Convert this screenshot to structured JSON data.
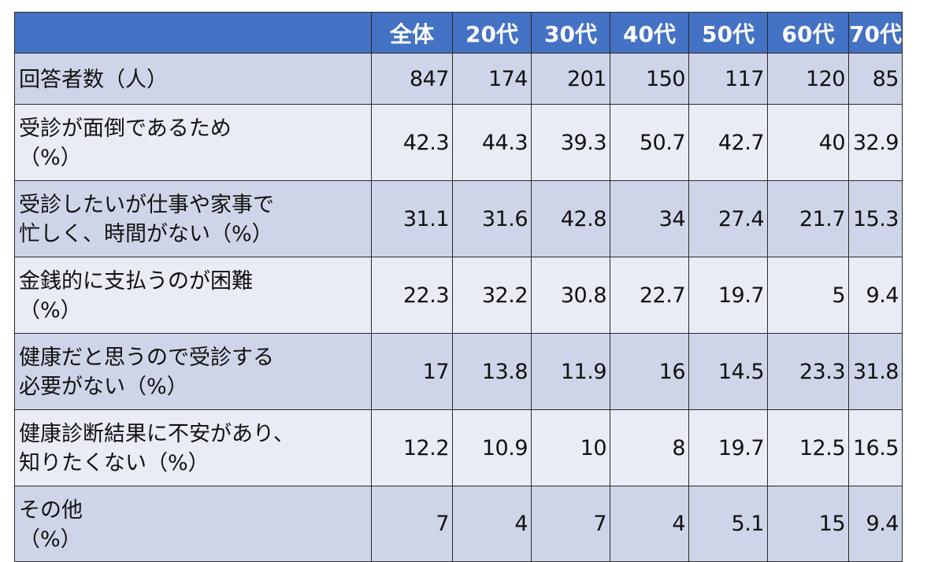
{
  "chart_data": {
    "type": "table",
    "columns": [
      "全体",
      "20代",
      "30代",
      "40代",
      "50代",
      "60代",
      "70代"
    ],
    "rows": [
      {
        "label": "回答者数（人）",
        "values": [
          "847",
          "174",
          "201",
          "150",
          "117",
          "120",
          "85"
        ]
      },
      {
        "label": "受診が面倒であるため\n（%）",
        "values": [
          "42.3",
          "44.3",
          "39.3",
          "50.7",
          "42.7",
          "40",
          "32.9"
        ]
      },
      {
        "label": "受診したいが仕事や家事で\n忙しく、時間がない（%）",
        "values": [
          "31.1",
          "31.6",
          "42.8",
          "34",
          "27.4",
          "21.7",
          "15.3"
        ]
      },
      {
        "label": "金銭的に支払うのが困難\n（%）",
        "values": [
          "22.3",
          "32.2",
          "30.8",
          "22.7",
          "19.7",
          "5",
          "9.4"
        ]
      },
      {
        "label": "健康だと思うので受診する\n必要がない（%）",
        "values": [
          "17",
          "13.8",
          "11.9",
          "16",
          "14.5",
          "23.3",
          "31.8"
        ]
      },
      {
        "label": "健康診断結果に不安があり、\n知りたくない（%）",
        "values": [
          "12.2",
          "10.9",
          "10",
          "8",
          "19.7",
          "12.5",
          "16.5"
        ]
      },
      {
        "label": "その他\n（%）",
        "values": [
          "7",
          "4",
          "7",
          "4",
          "5.1",
          "15",
          "9.4"
        ]
      }
    ]
  },
  "colors": {
    "header_bg": "#4472c4",
    "header_text": "#ffffff",
    "row_dark": "#cfd5e8",
    "row_light": "#e9ecf5"
  }
}
